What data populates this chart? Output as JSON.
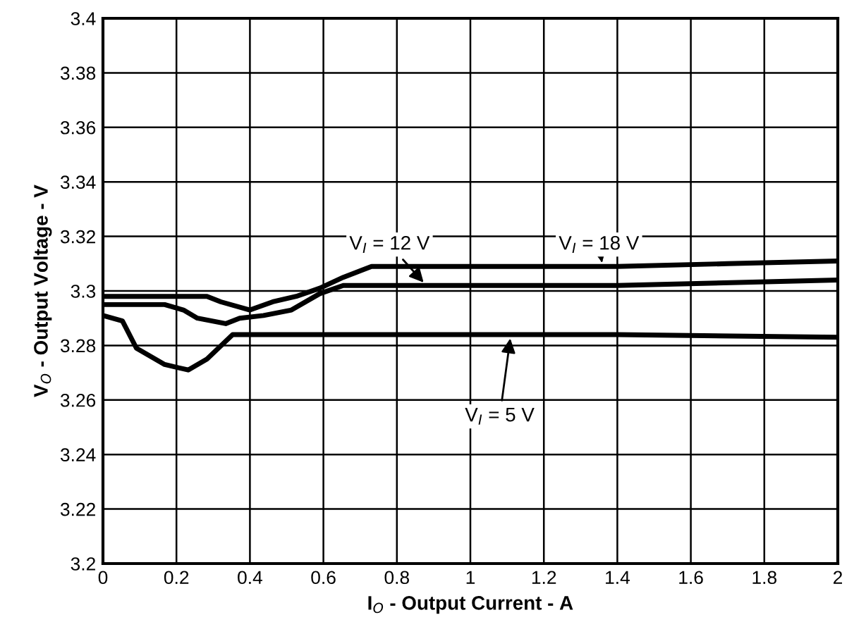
{
  "chart_data": {
    "type": "line",
    "xlabel": "I$_{O}$ - Output Current - A",
    "ylabel": "V$_{O}$ - Output Voltage - V",
    "xlim": [
      0,
      2
    ],
    "ylim": [
      3.2,
      3.4
    ],
    "xticks": [
      0,
      0.2,
      0.4,
      0.6,
      0.8,
      1,
      1.2,
      1.4,
      1.6,
      1.8,
      2
    ],
    "yticks": [
      3.2,
      3.22,
      3.24,
      3.26,
      3.28,
      3.3,
      3.32,
      3.34,
      3.36,
      3.38,
      3.4
    ],
    "grid": true,
    "marker": "none",
    "line_style": "solid",
    "series": [
      {
        "color": "#000000",
        "x": [
          0,
          0.091,
          0.283,
          0.321,
          0.4,
          0.462,
          0.526,
          0.59,
          0.654,
          0.731,
          1.0,
          1.4,
          1.7,
          2.0
        ],
        "values": [
          3.298,
          3.298,
          3.298,
          3.296,
          3.293,
          3.296,
          3.298,
          3.301,
          3.305,
          3.309,
          3.309,
          3.309,
          3.31,
          3.311
        ]
      },
      {
        "color": "#000000",
        "x": [
          0,
          0.091,
          0.168,
          0.219,
          0.257,
          0.334,
          0.372,
          0.437,
          0.513,
          0.59,
          0.654,
          1.2,
          1.4,
          2.0
        ],
        "values": [
          3.295,
          3.295,
          3.295,
          3.293,
          3.29,
          3.288,
          3.29,
          3.291,
          3.293,
          3.299,
          3.302,
          3.302,
          3.302,
          3.304
        ]
      },
      {
        "color": "#000000",
        "x": [
          0,
          0.053,
          0.091,
          0.168,
          0.232,
          0.283,
          0.353,
          1.4,
          2.0
        ],
        "values": [
          3.291,
          3.289,
          3.279,
          3.273,
          3.271,
          3.275,
          3.284,
          3.284,
          3.283
        ]
      }
    ],
    "annotations": [
      {
        "text": "V$_{I}$ = 12 V",
        "x": 0.88,
        "y": 3.302
      },
      {
        "text": "V$_{I}$ = 18 V",
        "x": 1.36,
        "y": 3.309
      },
      {
        "text": "V$_{I}$ = 5 V",
        "x": 1.11,
        "y": 3.284
      }
    ]
  }
}
